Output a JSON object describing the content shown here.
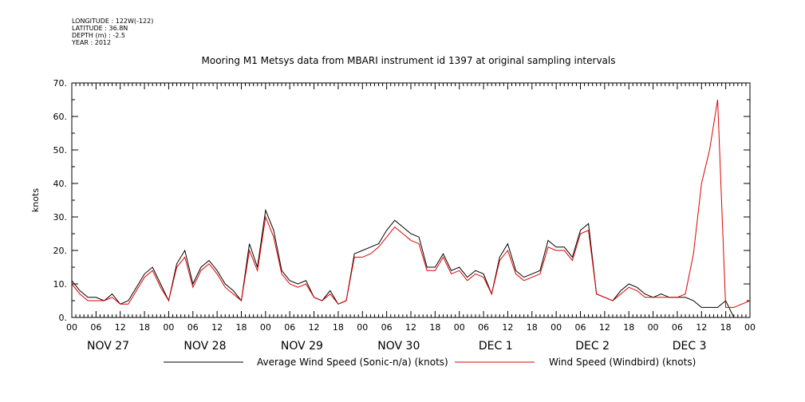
{
  "meta": {
    "longitude": "LONGITUDE : 122W(-122)",
    "latitude": "LATITUDE : 36.8N",
    "depth": "DEPTH (m) : -2.5",
    "year": "YEAR : 2012"
  },
  "chart_data": {
    "type": "line",
    "title": "Mooring M1 Metsys data from MBARI instrument id 1397 at original sampling intervals",
    "ylabel": "knots",
    "xlabel": "",
    "ylim": [
      0,
      70
    ],
    "y_ticks": [
      "0.",
      "10.",
      "20.",
      "30.",
      "40.",
      "50.",
      "60.",
      "70."
    ],
    "hour_labels": [
      "00",
      "06",
      "12",
      "18",
      "00",
      "06",
      "12",
      "18",
      "00",
      "06",
      "12",
      "18",
      "00",
      "06",
      "12",
      "18",
      "00",
      "06",
      "12",
      "18",
      "00",
      "06",
      "12",
      "18",
      "00",
      "06",
      "12",
      "18",
      "00"
    ],
    "day_labels": [
      "NOV 27",
      "NOV 28",
      "NOV 29",
      "NOV 30",
      "DEC  1",
      "DEC  2",
      "DEC  3"
    ],
    "grid": false,
    "legend": "bottom",
    "series": [
      {
        "name": "Average Wind Speed (Sonic-n/a) (knots)",
        "color": "#000000",
        "x": [
          0,
          2,
          4,
          6,
          8,
          10,
          12,
          14,
          16,
          18,
          20,
          22,
          24,
          26,
          28,
          30,
          32,
          34,
          36,
          38,
          40,
          42,
          44,
          46,
          48,
          50,
          52,
          54,
          56,
          58,
          60,
          62,
          64,
          66,
          68,
          70,
          72,
          74,
          76,
          78,
          80,
          82,
          84,
          86,
          88,
          90,
          92,
          94,
          96,
          98,
          100,
          102,
          104,
          106,
          108,
          110,
          112,
          114,
          116,
          118,
          120,
          122,
          124,
          126,
          128,
          130,
          132,
          134,
          136,
          138,
          140,
          142,
          144,
          146,
          148,
          150,
          152,
          154,
          156,
          158,
          160,
          162,
          164,
          166,
          168
        ],
        "values": [
          11,
          8,
          6,
          6,
          5,
          7,
          4,
          5,
          9,
          13,
          15,
          10,
          5,
          16,
          20,
          10,
          15,
          17,
          14,
          10,
          8,
          5,
          22,
          15,
          32,
          26,
          14,
          11,
          10,
          11,
          6,
          5,
          8,
          4,
          5,
          19,
          20,
          21,
          22,
          26,
          29,
          27,
          25,
          24,
          15,
          15,
          19,
          14,
          15,
          12,
          14,
          13,
          7,
          18,
          22,
          14,
          12,
          13,
          14,
          23,
          21,
          21,
          18,
          26,
          28,
          7,
          6,
          5,
          8,
          10,
          9,
          7,
          6,
          7,
          6,
          6,
          6,
          5,
          3,
          3,
          3,
          5,
          0,
          0,
          0
        ]
      },
      {
        "name": "Wind Speed (Windbird) (knots)",
        "color": "#e00000",
        "x": [
          0,
          2,
          4,
          6,
          8,
          10,
          12,
          14,
          16,
          18,
          20,
          22,
          24,
          26,
          28,
          30,
          32,
          34,
          36,
          38,
          40,
          42,
          44,
          46,
          48,
          50,
          52,
          54,
          56,
          58,
          60,
          62,
          64,
          66,
          68,
          70,
          72,
          74,
          76,
          78,
          80,
          82,
          84,
          86,
          88,
          90,
          92,
          94,
          96,
          98,
          100,
          102,
          104,
          106,
          108,
          110,
          112,
          114,
          116,
          118,
          120,
          122,
          124,
          126,
          128,
          130,
          132,
          134,
          136,
          138,
          140,
          142,
          144,
          146,
          148,
          150,
          152,
          154,
          156,
          158,
          160,
          162,
          164,
          166,
          168
        ],
        "values": [
          10,
          7,
          5,
          5,
          5,
          6,
          4,
          4,
          8,
          12,
          14,
          9,
          5,
          15,
          18,
          9,
          14,
          16,
          13,
          9,
          7,
          5,
          20,
          14,
          30,
          24,
          13,
          10,
          9,
          10,
          6,
          5,
          7,
          4,
          5,
          18,
          18,
          19,
          21,
          24,
          27,
          25,
          23,
          22,
          14,
          14,
          18,
          13,
          14,
          11,
          13,
          12,
          7,
          17,
          20,
          13,
          11,
          12,
          13,
          21,
          20,
          20,
          17,
          25,
          26,
          7,
          6,
          5,
          7,
          9,
          8,
          6,
          6,
          6,
          6,
          6,
          7,
          19,
          40,
          50,
          65,
          3,
          3,
          4,
          5
        ]
      }
    ],
    "series_x_unit": "hours since NOV 27 00"
  }
}
